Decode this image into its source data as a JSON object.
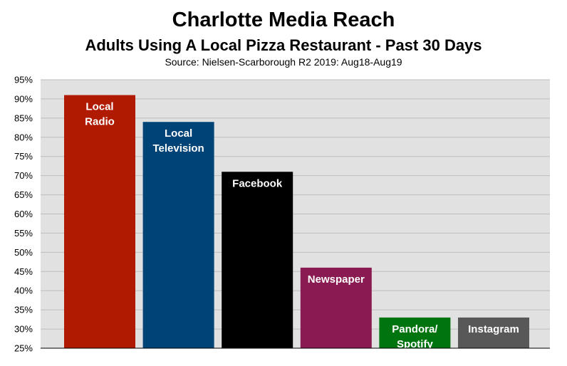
{
  "chart_data": {
    "type": "bar",
    "title": "Charlotte Media Reach",
    "subtitle": "Adults Using A Local Pizza Restaurant - Past 30 Days",
    "source": "Source: Nielsen-Scarborough R2 2019: Aug18-Aug19",
    "categories": [
      "Local Radio",
      "Local Television",
      "Facebook",
      "Newspaper",
      "Pandora/ Spotify",
      "Instagram"
    ],
    "label_lines": [
      [
        "Local",
        "Radio"
      ],
      [
        "Local",
        "Television"
      ],
      [
        "Facebook"
      ],
      [
        "Newspaper"
      ],
      [
        "Pandora/",
        "Spotify"
      ],
      [
        "Instagram"
      ]
    ],
    "values": [
      91,
      84,
      71,
      46,
      33,
      33
    ],
    "colors": [
      "#b01a00",
      "#004377",
      "#000000",
      "#8a1a52",
      "#00740f",
      "#585858"
    ],
    "ylim": [
      25,
      95
    ],
    "yticks": [
      "25%",
      "30%",
      "35%",
      "40%",
      "45%",
      "50%",
      "55%",
      "60%",
      "65%",
      "70%",
      "75%",
      "80%",
      "85%",
      "90%",
      "95%"
    ],
    "grid": true,
    "xlabel": "",
    "ylabel": ""
  }
}
